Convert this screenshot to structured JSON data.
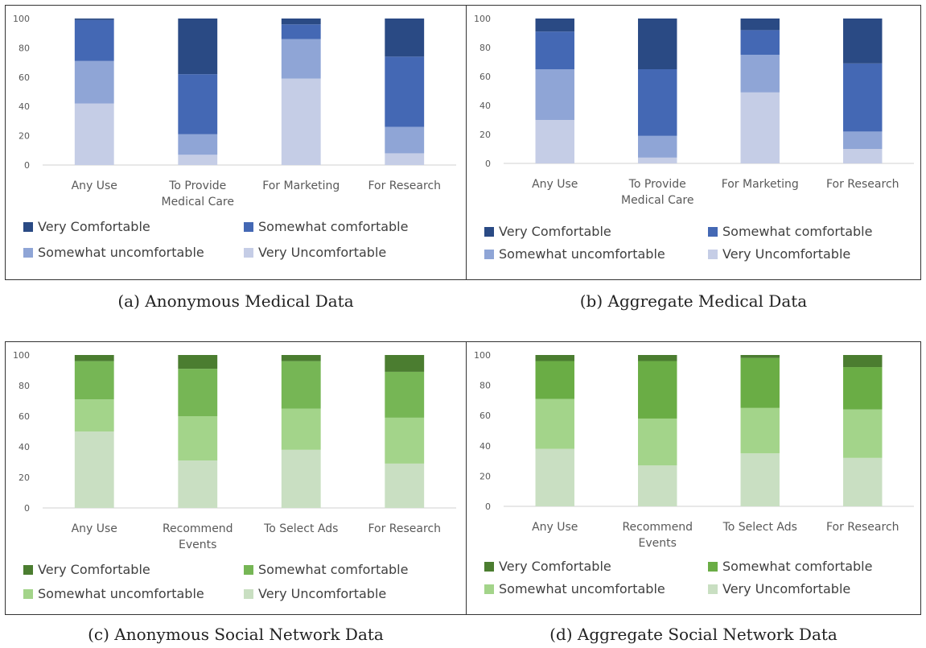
{
  "chart_data": [
    {
      "type": "bar",
      "stacked": true,
      "caption": "(a) Anonymous Medical Data",
      "categories": [
        [
          "Any Use"
        ],
        [
          "To Provide",
          "Medical Care"
        ],
        [
          "For Marketing"
        ],
        [
          "For Research"
        ]
      ],
      "ylim": [
        0,
        100
      ],
      "yticks": [
        "0",
        "20",
        "40",
        "60",
        "80",
        "100"
      ],
      "legend_position": "bottom",
      "series": [
        {
          "name": "Very Uncomfortable",
          "color": "#c5cde6",
          "values": [
            42,
            7,
            59,
            8
          ]
        },
        {
          "name": "Somewhat uncomfortable",
          "color": "#8fa5d6",
          "values": [
            29,
            14,
            27,
            18
          ]
        },
        {
          "name": "Somewhat comfortable",
          "color": "#4468b4",
          "values": [
            28,
            41,
            10,
            48
          ]
        },
        {
          "name": "Very Comfortable",
          "color": "#2a4a84",
          "values": [
            1,
            38,
            4,
            26
          ]
        }
      ]
    },
    {
      "type": "bar",
      "stacked": true,
      "caption": "(b) Aggregate Medical Data",
      "categories": [
        [
          "Any Use"
        ],
        [
          "To Provide",
          "Medical Care"
        ],
        [
          "For Marketing"
        ],
        [
          "For Research"
        ]
      ],
      "ylim": [
        0,
        100
      ],
      "yticks": [
        "0",
        "20",
        "40",
        "60",
        "80",
        "100"
      ],
      "legend_position": "bottom",
      "series": [
        {
          "name": "Very Uncomfortable",
          "color": "#c5cde6",
          "values": [
            30,
            4,
            49,
            10
          ]
        },
        {
          "name": "Somewhat uncomfortable",
          "color": "#8fa5d6",
          "values": [
            35,
            15,
            26,
            12
          ]
        },
        {
          "name": "Somewhat comfortable",
          "color": "#4468b4",
          "values": [
            26,
            46,
            17,
            47
          ]
        },
        {
          "name": "Very Comfortable",
          "color": "#2a4a84",
          "values": [
            9,
            35,
            8,
            31
          ]
        }
      ]
    },
    {
      "type": "bar",
      "stacked": true,
      "caption": "(c) Anonymous Social Network Data",
      "categories": [
        [
          "Any Use"
        ],
        [
          "Recommend",
          "Events"
        ],
        [
          "To Select Ads"
        ],
        [
          "For Research"
        ]
      ],
      "ylim": [
        0,
        100
      ],
      "yticks": [
        "0",
        "20",
        "40",
        "60",
        "80",
        "100"
      ],
      "legend_position": "bottom",
      "series": [
        {
          "name": "Very Uncomfortable",
          "color": "#c9dfc2",
          "values": [
            50,
            31,
            38,
            29
          ]
        },
        {
          "name": "Somewhat uncomfortable",
          "color": "#a3d48a",
          "values": [
            21,
            29,
            27,
            30
          ]
        },
        {
          "name": "Somewhat comfortable",
          "color": "#76b655",
          "values": [
            25,
            31,
            31,
            30
          ]
        },
        {
          "name": "Very Comfortable",
          "color": "#4b7d30",
          "values": [
            4,
            9,
            4,
            11
          ]
        }
      ]
    },
    {
      "type": "bar",
      "stacked": true,
      "caption": "(d) Aggregate Social Network Data",
      "categories": [
        [
          "Any Use"
        ],
        [
          "Recommend",
          "Events"
        ],
        [
          "To Select Ads"
        ],
        [
          "For Research"
        ]
      ],
      "ylim": [
        0,
        100
      ],
      "yticks": [
        "0",
        "20",
        "40",
        "60",
        "80",
        "100"
      ],
      "legend_position": "bottom",
      "series": [
        {
          "name": "Very Uncomfortable",
          "color": "#c9dfc2",
          "values": [
            38,
            27,
            35,
            32
          ]
        },
        {
          "name": "Somewhat uncomfortable",
          "color": "#a3d48a",
          "values": [
            33,
            31,
            30,
            32
          ]
        },
        {
          "name": "Somewhat comfortable",
          "color": "#6aad45",
          "values": [
            25,
            38,
            33,
            28
          ]
        },
        {
          "name": "Very Comfortable",
          "color": "#4b7d30",
          "values": [
            4,
            4,
            2,
            8
          ]
        }
      ]
    }
  ]
}
